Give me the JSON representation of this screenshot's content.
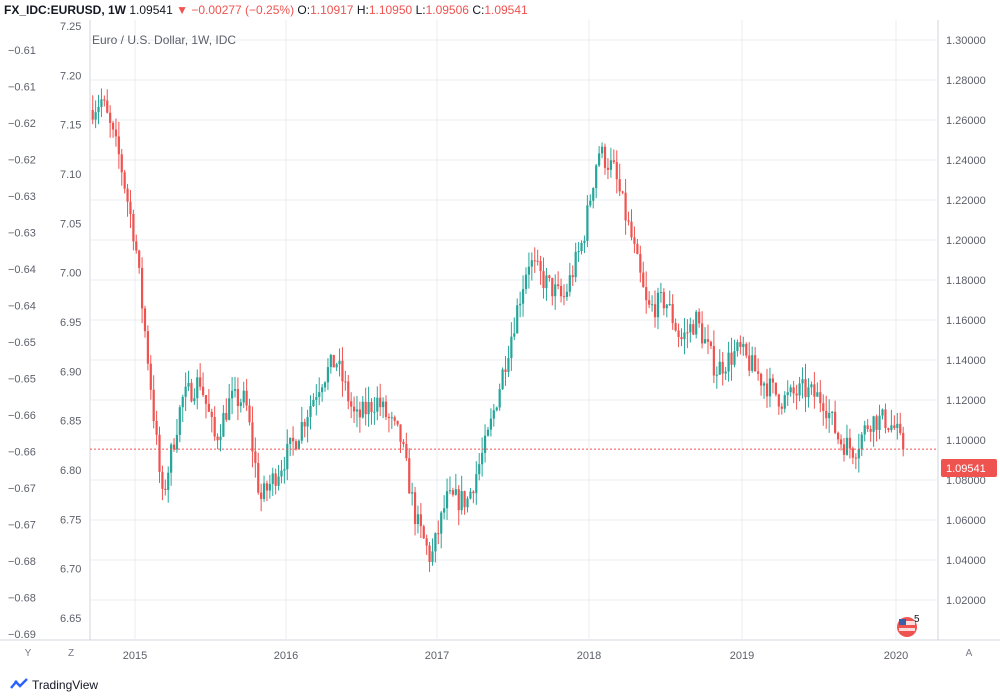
{
  "header": {
    "symbol": "FX_IDC:EURUSD, 1W",
    "last": "1.09541",
    "change": "−0.00277 (−0.25%)",
    "o_label": "O:",
    "o_value": "1.10917",
    "h_label": "H:",
    "h_value": "1.10950",
    "l_label": "L:",
    "l_value": "1.09506",
    "c_label": "C:",
    "c_value": "1.09541"
  },
  "chart_title": "Euro / U.S. Dollar, 1W, IDC",
  "left_axis_labels": [
    "7.25",
    "7.20",
    "7.15",
    "7.10",
    "7.05",
    "7.00",
    "6.95",
    "6.90",
    "6.85",
    "6.80",
    "6.75",
    "6.70",
    "6.65"
  ],
  "far_left_axis_labels": [
    "−0.61",
    "−0.61",
    "−0.62",
    "−0.62",
    "−0.63",
    "−0.63",
    "−0.64",
    "−0.64",
    "−0.65",
    "−0.65",
    "−0.66",
    "−0.66",
    "−0.67",
    "−0.67",
    "−0.68",
    "−0.68",
    "−0.69"
  ],
  "right_axis_labels": [
    "1.30000",
    "1.28000",
    "1.26000",
    "1.24000",
    "1.22000",
    "1.20000",
    "1.18000",
    "1.16000",
    "1.14000",
    "1.12000",
    "1.10000",
    "1.08000",
    "1.06000",
    "1.04000",
    "1.02000"
  ],
  "x_axis_labels": [
    "2015",
    "2016",
    "2017",
    "2018",
    "2019",
    "2020"
  ],
  "current_price_label": "1.09541",
  "flag_badge": "5",
  "bottom_buttons": {
    "y": "Y",
    "z": "Z",
    "a": "A"
  },
  "footer": {
    "brand": "TradingView"
  },
  "colors": {
    "up": "#26a69a",
    "down": "#ef5350",
    "grid": "#e9ecf1",
    "axis_text": "#5d606b",
    "price_line": "#ef5350"
  },
  "chart_data": {
    "type": "candlestick",
    "title": "Euro / U.S. Dollar, 1W, IDC",
    "ylim": [
      1.0,
      1.31
    ],
    "x_ticks": [
      "2015",
      "2016",
      "2017",
      "2018",
      "2019",
      "2020"
    ],
    "last_close": 1.09541,
    "series": [
      {
        "name": "EURUSD",
        "anchors": [
          {
            "t": 2014.72,
            "v": 1.265
          },
          {
            "t": 2014.8,
            "v": 1.27
          },
          {
            "t": 2014.92,
            "v": 1.24
          },
          {
            "t": 2015.02,
            "v": 1.2
          },
          {
            "t": 2015.12,
            "v": 1.13
          },
          {
            "t": 2015.2,
            "v": 1.07
          },
          {
            "t": 2015.25,
            "v": 1.09
          },
          {
            "t": 2015.33,
            "v": 1.12
          },
          {
            "t": 2015.45,
            "v": 1.13
          },
          {
            "t": 2015.55,
            "v": 1.1
          },
          {
            "t": 2015.65,
            "v": 1.12
          },
          {
            "t": 2015.75,
            "v": 1.12
          },
          {
            "t": 2015.85,
            "v": 1.07
          },
          {
            "t": 2015.93,
            "v": 1.08
          },
          {
            "t": 2016.08,
            "v": 1.1
          },
          {
            "t": 2016.25,
            "v": 1.13
          },
          {
            "t": 2016.35,
            "v": 1.14
          },
          {
            "t": 2016.48,
            "v": 1.11
          },
          {
            "t": 2016.62,
            "v": 1.12
          },
          {
            "t": 2016.78,
            "v": 1.1
          },
          {
            "t": 2016.88,
            "v": 1.06
          },
          {
            "t": 2016.98,
            "v": 1.04
          },
          {
            "t": 2017.08,
            "v": 1.07
          },
          {
            "t": 2017.22,
            "v": 1.07
          },
          {
            "t": 2017.35,
            "v": 1.1
          },
          {
            "t": 2017.5,
            "v": 1.15
          },
          {
            "t": 2017.62,
            "v": 1.19
          },
          {
            "t": 2017.72,
            "v": 1.18
          },
          {
            "t": 2017.85,
            "v": 1.17
          },
          {
            "t": 2017.98,
            "v": 1.2
          },
          {
            "t": 2018.08,
            "v": 1.245
          },
          {
            "t": 2018.18,
            "v": 1.235
          },
          {
            "t": 2018.3,
            "v": 1.2
          },
          {
            "t": 2018.4,
            "v": 1.165
          },
          {
            "t": 2018.52,
            "v": 1.17
          },
          {
            "t": 2018.62,
            "v": 1.15
          },
          {
            "t": 2018.72,
            "v": 1.16
          },
          {
            "t": 2018.85,
            "v": 1.135
          },
          {
            "t": 2019.0,
            "v": 1.145
          },
          {
            "t": 2019.15,
            "v": 1.13
          },
          {
            "t": 2019.28,
            "v": 1.12
          },
          {
            "t": 2019.42,
            "v": 1.125
          },
          {
            "t": 2019.55,
            "v": 1.12
          },
          {
            "t": 2019.65,
            "v": 1.1
          },
          {
            "t": 2019.75,
            "v": 1.095
          },
          {
            "t": 2019.85,
            "v": 1.11
          },
          {
            "t": 2019.95,
            "v": 1.11
          },
          {
            "t": 2020.02,
            "v": 1.105
          },
          {
            "t": 2020.06,
            "v": 1.095
          }
        ]
      }
    ]
  }
}
